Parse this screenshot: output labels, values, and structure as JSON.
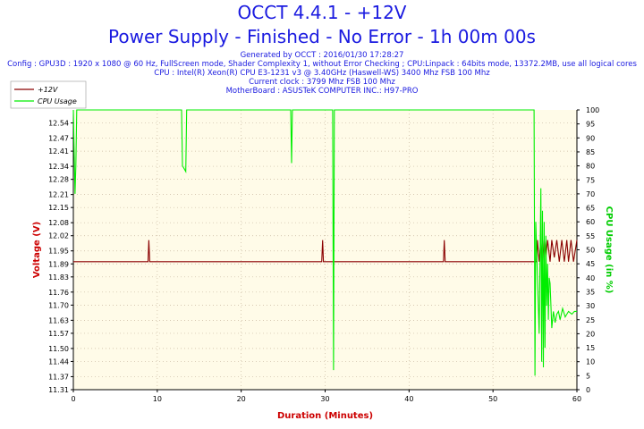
{
  "header": {
    "title": "OCCT 4.4.1 - +12V",
    "subtitle": "Power Supply - Finished - No Error - 1h 00m 00s",
    "info_lines": [
      "Generated by OCCT : 2016/01/30 17:28:27",
      "Config : GPU3D : 1920 x 1080 @ 60 Hz, FullScreen mode, Shader Complexity 1, without Error Checking ; CPU:Linpack : 64bits mode, 13372.2MB, use all logical cores",
      "CPU : Intel(R) Xeon(R) CPU E3-1231 v3 @ 3.40GHz (Haswell-WS) 3400 Mhz FSB 100 Mhz",
      "Current clock : 3799 Mhz FSB 100 Mhz",
      "MotherBoard : ASUSTeK COMPUTER INC.: H97-PRO"
    ]
  },
  "colors": {
    "title": "#1a1ae0",
    "voltage_series": "#8b0000",
    "cpu_series": "#00ee00",
    "plot_background": "#fffbe8",
    "axis_label_left": "#cc0000",
    "axis_label_right": "#00cc00",
    "xlabel": "#cc0000"
  },
  "chart_data": {
    "type": "line",
    "xlabel": "Duration (Minutes)",
    "ylabel": "Voltage (V)",
    "y2label": "CPU Usage (in %)",
    "xlim": [
      0,
      60
    ],
    "ylim": [
      11.31,
      12.6
    ],
    "y2lim": [
      0,
      100
    ],
    "x_ticks": [
      0,
      10,
      20,
      30,
      40,
      50,
      60
    ],
    "y_ticks": [
      11.31,
      11.37,
      11.44,
      11.5,
      11.57,
      11.63,
      11.7,
      11.76,
      11.83,
      11.89,
      11.95,
      12.02,
      12.08,
      12.15,
      12.21,
      12.28,
      12.34,
      12.41,
      12.47,
      12.54
    ],
    "y2_ticks": [
      0,
      5,
      10,
      15,
      20,
      25,
      30,
      35,
      40,
      45,
      50,
      55,
      60,
      65,
      70,
      75,
      80,
      85,
      90,
      95,
      100
    ],
    "grid": "dotted",
    "legend_position": "top-left",
    "series": [
      {
        "name": "+12V",
        "axis": "left",
        "x": [
          0,
          8.9,
          9.0,
          9.1,
          29.6,
          29.7,
          29.8,
          44.1,
          44.2,
          44.3,
          55.2,
          55.3,
          55.5,
          55.7,
          55.9,
          56.1,
          56.3,
          56.5,
          56.8,
          57.0,
          57.3,
          57.6,
          57.9,
          58.2,
          58.5,
          58.8,
          59.0,
          59.3,
          59.6,
          60
        ],
        "y": [
          11.9,
          11.9,
          12.0,
          11.9,
          11.9,
          12.0,
          11.9,
          11.9,
          12.0,
          11.9,
          11.9,
          12.0,
          11.9,
          12.0,
          11.9,
          12.0,
          11.92,
          12.0,
          11.9,
          12.0,
          11.92,
          12.0,
          11.9,
          12.0,
          11.9,
          12.0,
          11.9,
          12.0,
          11.9,
          12.0
        ]
      },
      {
        "name": "CPU Usage",
        "axis": "right",
        "x": [
          0,
          0.1,
          0.2,
          0.3,
          0.4,
          0.5,
          12.9,
          13.0,
          13.2,
          13.4,
          13.5,
          25.9,
          26.0,
          26.1,
          30.9,
          31.0,
          31.1,
          54.9,
          55.0,
          55.1,
          55.3,
          55.5,
          55.7,
          55.8,
          55.9,
          56.0,
          56.1,
          56.2,
          56.3,
          56.4,
          56.5,
          56.6,
          56.7,
          56.8,
          57.0,
          57.2,
          57.4,
          57.6,
          57.8,
          58.0,
          58.3,
          58.6,
          59.0,
          59.4,
          59.7,
          60
        ],
        "y": [
          100,
          85,
          70,
          80,
          100,
          100,
          100,
          80,
          79,
          78,
          100,
          100,
          81,
          100,
          100,
          7,
          100,
          100,
          5,
          60,
          40,
          20,
          72,
          10,
          64,
          8,
          60,
          15,
          55,
          30,
          45,
          25,
          40,
          38,
          22,
          28,
          24,
          27,
          28,
          25,
          29,
          26,
          28,
          27,
          28,
          28
        ]
      }
    ]
  }
}
